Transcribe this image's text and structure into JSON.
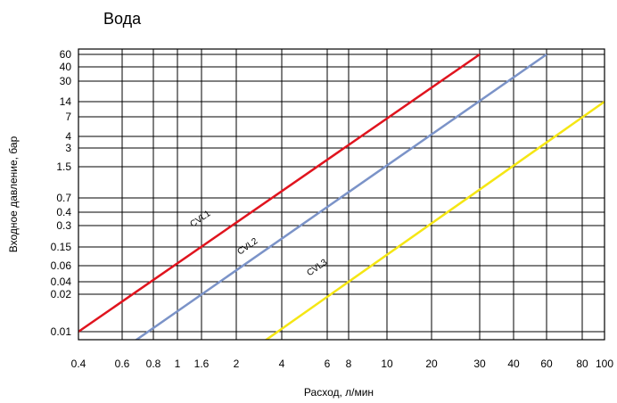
{
  "chart_data": {
    "type": "line",
    "title": "Вода",
    "xlabel": "Расход, л/мин",
    "ylabel": "Входное давление, бар",
    "grid": true,
    "x_ticks": [
      "0.4",
      "0.6",
      "0.8",
      "1",
      "1.6",
      "2",
      "4",
      "6",
      "8",
      "10",
      "20",
      "30",
      "40",
      "60",
      "80",
      "100"
    ],
    "y_ticks": [
      "0.01",
      "0.02",
      "0.04",
      "0.06",
      "0.15",
      "0.3",
      "0.4",
      "0.7",
      "1.5",
      "3",
      "4",
      "7",
      "14",
      "30",
      "40",
      "60"
    ],
    "series": [
      {
        "name": "CVL1",
        "color": "#e0141e",
        "x": [
          0.4,
          30
        ],
        "y": [
          0.01,
          60
        ]
      },
      {
        "name": "CVL2",
        "color": "#7b93c8",
        "x": [
          0.65,
          60
        ],
        "y": [
          0.008,
          60
        ]
      },
      {
        "name": "CVL3",
        "color": "#f5e614",
        "x": [
          2.9,
          100
        ],
        "y": [
          0.008,
          14
        ]
      }
    ]
  }
}
